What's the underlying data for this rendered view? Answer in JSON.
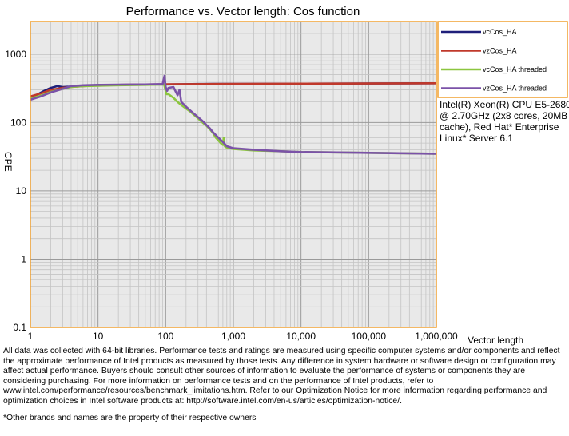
{
  "chart_data": {
    "type": "line",
    "title": "Performance vs. Vector length: Cos function",
    "xlabel": "Vector length",
    "ylabel": "CPE",
    "x_scale": "log",
    "y_scale": "log",
    "xlim": [
      1,
      1000000
    ],
    "ylim": [
      0.1,
      3000
    ],
    "x_ticks": [
      1,
      10,
      100,
      1000,
      10000,
      100000,
      1000000
    ],
    "x_tick_labels": [
      "1",
      "10",
      "100",
      "1,000",
      "10,000",
      "100,000",
      "1,000,000"
    ],
    "y_ticks": [
      0.1,
      1,
      10,
      100,
      1000
    ],
    "y_tick_labels": [
      "0.1",
      "1",
      "10",
      "100",
      "1000"
    ],
    "grid": true,
    "legend_position": "right",
    "series": [
      {
        "name": "vcCos_HA",
        "color": "#1f1f7a",
        "x": [
          1,
          1.3,
          1.6,
          2,
          2.5,
          3,
          4,
          5,
          7,
          10,
          20,
          50,
          100,
          150,
          200,
          300,
          500,
          800,
          1000,
          10000,
          100000,
          1000000
        ],
        "y": [
          230,
          260,
          290,
          320,
          340,
          330,
          335,
          340,
          345,
          350,
          355,
          360,
          360,
          362,
          364,
          366,
          367,
          368,
          368,
          370,
          372,
          375
        ]
      },
      {
        "name": "vzCos_HA",
        "color": "#c0392b",
        "x": [
          1,
          1.5,
          2,
          3,
          4,
          6,
          10,
          20,
          50,
          100,
          200,
          500,
          1000,
          10000,
          100000,
          1000000
        ],
        "y": [
          240,
          270,
          300,
          320,
          330,
          340,
          350,
          355,
          360,
          362,
          364,
          366,
          368,
          370,
          372,
          375
        ]
      },
      {
        "name": "vcCos_HA threaded",
        "color": "#8cc63f",
        "x": [
          1,
          1.5,
          2,
          3,
          4,
          6,
          10,
          20,
          50,
          95,
          100,
          103,
          110,
          130,
          150,
          170,
          200,
          230,
          260,
          300,
          350,
          400,
          450,
          500,
          550,
          600,
          650,
          700,
          720,
          740,
          760,
          800,
          900,
          1000,
          2000,
          5000,
          10000,
          100000,
          1000000
        ],
        "y": [
          225,
          250,
          280,
          310,
          330,
          340,
          345,
          350,
          355,
          360,
          290,
          260,
          260,
          230,
          200,
          180,
          160,
          145,
          130,
          115,
          100,
          90,
          80,
          70,
          60,
          55,
          50,
          47,
          60,
          46,
          44,
          43,
          42,
          41,
          39,
          38,
          37,
          36,
          35
        ]
      },
      {
        "name": "vzCos_HA threaded",
        "color": "#7b52a8",
        "x": [
          1,
          1.5,
          2,
          3,
          4,
          6,
          10,
          20,
          50,
          90,
          96,
          100,
          102,
          105,
          110,
          130,
          150,
          160,
          170,
          200,
          230,
          260,
          300,
          350,
          400,
          450,
          500,
          600,
          700,
          800,
          1000,
          2000,
          5000,
          10000,
          100000,
          1000000
        ],
        "y": [
          215,
          245,
          275,
          310,
          340,
          350,
          355,
          358,
          360,
          365,
          480,
          330,
          310,
          290,
          320,
          330,
          250,
          300,
          200,
          170,
          150,
          135,
          120,
          105,
          92,
          82,
          72,
          60,
          52,
          45,
          42,
          40,
          38,
          37,
          36,
          35
        ]
      }
    ]
  },
  "annotation": "Intel(R) Xeon(R) CPU E5-2680 @ 2.70GHz (2x8 cores, 20MB cache), Red Hat* Enterprise Linux* Server 6.1",
  "footer": {
    "disclaimer": "All data was collected with 64-bit libraries. Performance tests and ratings are measured using specific computer systems and/or components and reflect the approximate performance of Intel products as measured by those tests. Any difference in system hardware or software design or configuration may affect actual performance. Buyers should consult other sources of information to evaluate the performance of systems or components they are considering purchasing. For more information on performance tests and on the performance of Intel products, refer to www.intel.com/performance/resources/benchmark_limitations.htm. Refer to our Optimization Notice for more information regarding performance and optimization choices in Intel software products at: http://software.intel.com/en-us/articles/optimization-notice/.",
    "trademark": "*Other brands and names are the property of their respective owners"
  }
}
